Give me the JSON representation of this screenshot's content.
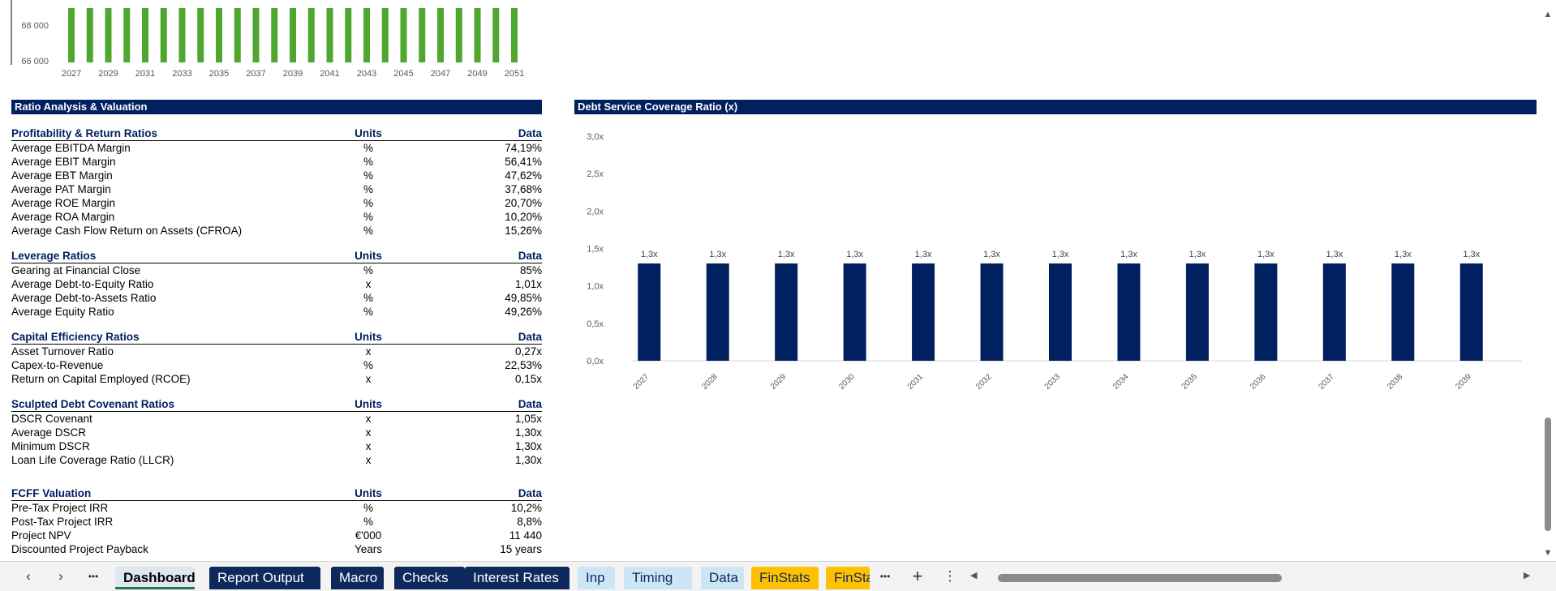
{
  "top_chart": {
    "y_ticks": [
      "68 000",
      "66 000"
    ],
    "x_ticks": [
      "2027",
      "2029",
      "2031",
      "2033",
      "2035",
      "2037",
      "2039",
      "2041",
      "2043",
      "2045",
      "2047",
      "2049",
      "2051"
    ],
    "bar_color": "#4ea72e",
    "bar_years": [
      2027,
      2028,
      2029,
      2030,
      2031,
      2032,
      2033,
      2034,
      2035,
      2036,
      2037,
      2038,
      2039,
      2040,
      2041,
      2042,
      2043,
      2044,
      2045,
      2046,
      2047,
      2048,
      2049,
      2050,
      2051
    ]
  },
  "ratio_section": {
    "title": "Ratio Analysis & Valuation",
    "groups": [
      {
        "title": "Profitability & Return Ratios",
        "units_label": "Units",
        "data_label": "Data",
        "rows": [
          [
            "Average EBITDA Margin",
            "%",
            "74,19%"
          ],
          [
            "Average EBIT Margin",
            "%",
            "56,41%"
          ],
          [
            "Average EBT Margin",
            "%",
            "47,62%"
          ],
          [
            "Average PAT Margin",
            "%",
            "37,68%"
          ],
          [
            "Average ROE Margin",
            "%",
            "20,70%"
          ],
          [
            "Average ROA Margin",
            "%",
            "10,20%"
          ],
          [
            "Average Cash Flow Return on Assets (CFROA)",
            "%",
            "15,26%"
          ]
        ]
      },
      {
        "title": "Leverage Ratios",
        "units_label": "Units",
        "data_label": "Data",
        "rows": [
          [
            "Gearing at Financial Close",
            "%",
            "85%"
          ],
          [
            "Average Debt-to-Equity Ratio",
            "x",
            "1,01x"
          ],
          [
            "Average Debt-to-Assets Ratio",
            "%",
            "49,85%"
          ],
          [
            "Average Equity Ratio",
            "%",
            "49,26%"
          ]
        ]
      },
      {
        "title": "Capital Efficiency Ratios",
        "units_label": "Units",
        "data_label": "Data",
        "rows": [
          [
            "Asset Turnover Ratio",
            "x",
            "0,27x"
          ],
          [
            "Capex-to-Revenue",
            "%",
            "22,53%"
          ],
          [
            "Return on Capital Employed (RCOE)",
            "x",
            "0,15x"
          ]
        ]
      },
      {
        "title": "Sculpted Debt Covenant Ratios",
        "units_label": "Units",
        "data_label": "Data",
        "rows": [
          [
            "DSCR Covenant",
            "x",
            "1,05x"
          ],
          [
            "Average DSCR",
            "x",
            "1,30x"
          ],
          [
            "Minimum DSCR",
            "x",
            "1,30x"
          ],
          [
            "Loan Life Coverage Ratio (LLCR)",
            "x",
            "1,30x"
          ]
        ]
      },
      {
        "title": "FCFF Valuation",
        "units_label": "Units",
        "data_label": "Data",
        "rows": [
          [
            "Pre-Tax Project IRR",
            "%",
            "10,2%"
          ],
          [
            "Post-Tax Project IRR",
            "%",
            "8,8%"
          ],
          [
            "Project NPV",
            "€'000",
            "11 440"
          ],
          [
            "Discounted Project Payback",
            "Years",
            "15 years"
          ]
        ]
      }
    ]
  },
  "dscr_section": {
    "title": "Debt Service Coverage Ratio (x)"
  },
  "chart_data": {
    "type": "bar",
    "title": "Debt Service Coverage Ratio (x)",
    "categories": [
      "2027",
      "2028",
      "2029",
      "2030",
      "2031",
      "2032",
      "2033",
      "2034",
      "2035",
      "2036",
      "2037",
      "2038",
      "2039"
    ],
    "values": [
      1.3,
      1.3,
      1.3,
      1.3,
      1.3,
      1.3,
      1.3,
      1.3,
      1.3,
      1.3,
      1.3,
      1.3,
      1.3
    ],
    "data_labels": [
      "1,3x",
      "1,3x",
      "1,3x",
      "1,3x",
      "1,3x",
      "1,3x",
      "1,3x",
      "1,3x",
      "1,3x",
      "1,3x",
      "1,3x",
      "1,3x",
      "1,3x"
    ],
    "y_ticks": [
      0,
      0.5,
      1.0,
      1.5,
      2.0,
      2.5,
      3.0
    ],
    "y_tick_labels": [
      "0,0x",
      "0,5x",
      "1,0x",
      "1,5x",
      "2,0x",
      "2,5x",
      "3,0x"
    ],
    "ylim": [
      0,
      3
    ],
    "bar_color": "#002060",
    "grid": false,
    "legend": "none"
  },
  "tabs": {
    "nav_prev": "‹",
    "nav_next": "›",
    "more": "•••",
    "add": "+",
    "menu": "⋮",
    "items": [
      {
        "label": "Dashboard",
        "style": "active"
      },
      {
        "label": "Report Output",
        "style": "dark"
      },
      {
        "label": "Macro",
        "style": "dark"
      },
      {
        "label": "Checks",
        "style": "dark"
      },
      {
        "label": "Interest Rates",
        "style": "dark"
      },
      {
        "label": "Inp",
        "style": "light"
      },
      {
        "label": "Timing",
        "style": "light"
      },
      {
        "label": "Data",
        "style": "light"
      },
      {
        "label": "FinStats",
        "style": "gold"
      },
      {
        "label": "FinSta",
        "style": "gold"
      }
    ]
  },
  "scroll": {
    "up": "▲",
    "down": "▼",
    "left": "◀",
    "right": "▶"
  }
}
